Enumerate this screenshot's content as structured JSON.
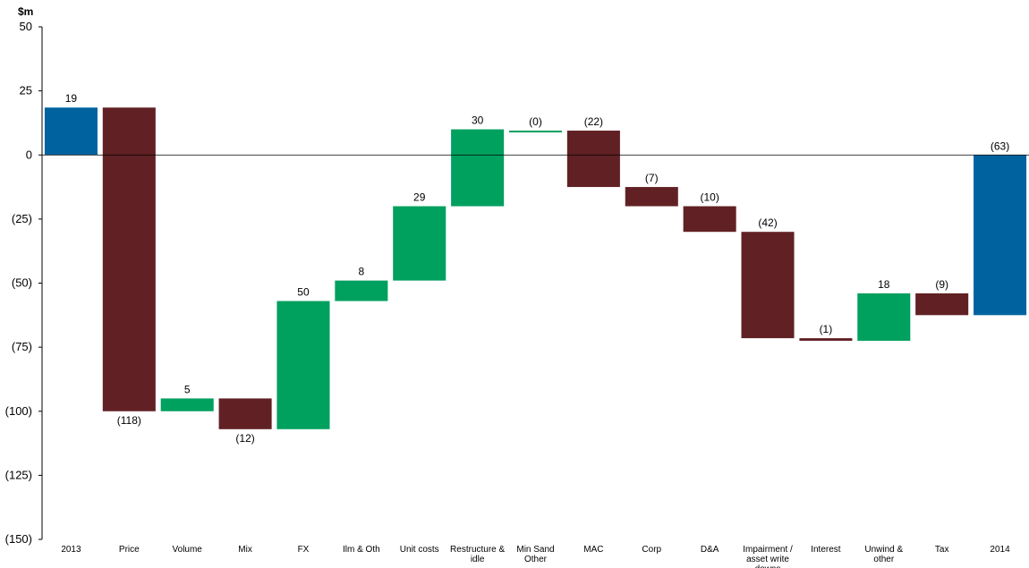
{
  "chart_data": {
    "type": "bar",
    "subtype": "waterfall",
    "ylabel": "$m",
    "ylim": [
      -150,
      50
    ],
    "yticks": [
      50,
      25,
      0,
      -25,
      -50,
      -75,
      -100,
      -125,
      -150
    ],
    "ytick_labels": [
      "50",
      "25",
      "0",
      "(25)",
      "(50)",
      "(75)",
      "(100)",
      "(125)",
      "(150)"
    ],
    "grid": false,
    "colors": {
      "total": "#0063A0",
      "increase": "#00A05F",
      "decrease": "#612124",
      "zero_line": "#000000"
    },
    "categories": [
      [
        "2013"
      ],
      [
        "Price"
      ],
      [
        "Volume"
      ],
      [
        "Mix"
      ],
      [
        "FX"
      ],
      [
        "Ilm & Oth"
      ],
      [
        "Unit costs"
      ],
      [
        "Restructure &",
        "idle"
      ],
      [
        "Min Sand",
        "Other"
      ],
      [
        "MAC"
      ],
      [
        "Corp"
      ],
      [
        "D&A"
      ],
      [
        "Impairment /",
        "asset write",
        "downs"
      ],
      [
        "Interest"
      ],
      [
        "Unwind &",
        "other"
      ],
      [
        "Tax"
      ],
      [
        "2014"
      ]
    ],
    "kinds": [
      "total",
      "delta",
      "delta",
      "delta",
      "delta",
      "delta",
      "delta",
      "delta",
      "delta",
      "delta",
      "delta",
      "delta",
      "delta",
      "delta",
      "delta",
      "delta",
      "total"
    ],
    "starts": [
      0,
      18.5,
      -100,
      -95,
      -107,
      -57,
      -49,
      -20,
      9.5,
      9.5,
      -12.5,
      -20,
      -30,
      -71.5,
      -72.5,
      -54,
      0
    ],
    "ends": [
      18.5,
      -100,
      -95,
      -107,
      -57,
      -49,
      -20,
      10,
      9.5,
      -12.5,
      -20,
      -30,
      -71.5,
      -72.5,
      -54,
      -62.5,
      -62.5
    ],
    "labels": [
      "19",
      "(118)",
      "5",
      "(12)",
      "50",
      "8",
      "29",
      "30",
      "(0)",
      "(22)",
      "(7)",
      "(10)",
      "(42)",
      "(1)",
      "18",
      "(9)",
      "(63)"
    ]
  }
}
